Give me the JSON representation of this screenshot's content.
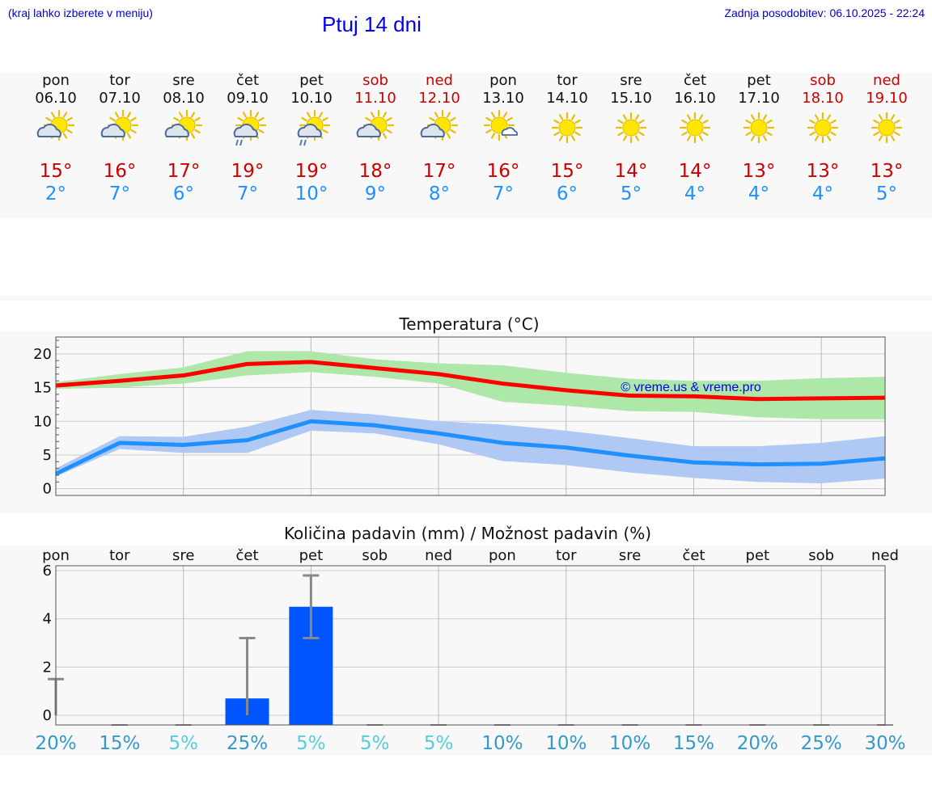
{
  "header": {
    "menu_hint": "(kraj lahko izberete v meniju)",
    "title": "Ptuj 14 dni",
    "last_update": "Zadnja posodobitev: 06.10.2025 - 22:24"
  },
  "days": [
    {
      "name": "pon",
      "date": "06.10",
      "weekend": false,
      "icon": "sun-cloud-icon",
      "tmax": "15°",
      "tmin": "2°"
    },
    {
      "name": "tor",
      "date": "07.10",
      "weekend": false,
      "icon": "sun-cloud-icon",
      "tmax": "16°",
      "tmin": "7°"
    },
    {
      "name": "sre",
      "date": "08.10",
      "weekend": false,
      "icon": "sun-cloud-icon",
      "tmax": "17°",
      "tmin": "6°"
    },
    {
      "name": "čet",
      "date": "09.10",
      "weekend": false,
      "icon": "sun-cloud-rain-icon",
      "tmax": "19°",
      "tmin": "7°"
    },
    {
      "name": "pet",
      "date": "10.10",
      "weekend": false,
      "icon": "sun-cloud-rain-icon",
      "tmax": "19°",
      "tmin": "10°"
    },
    {
      "name": "sob",
      "date": "11.10",
      "weekend": true,
      "icon": "sun-cloud-icon",
      "tmax": "18°",
      "tmin": "9°"
    },
    {
      "name": "ned",
      "date": "12.10",
      "weekend": true,
      "icon": "sun-cloud-icon",
      "tmax": "17°",
      "tmin": "8°"
    },
    {
      "name": "pon",
      "date": "13.10",
      "weekend": false,
      "icon": "sun-small-cloud-icon",
      "tmax": "16°",
      "tmin": "7°"
    },
    {
      "name": "tor",
      "date": "14.10",
      "weekend": false,
      "icon": "sun-icon",
      "tmax": "15°",
      "tmin": "6°"
    },
    {
      "name": "sre",
      "date": "15.10",
      "weekend": false,
      "icon": "sun-icon",
      "tmax": "14°",
      "tmin": "5°"
    },
    {
      "name": "čet",
      "date": "16.10",
      "weekend": false,
      "icon": "sun-icon",
      "tmax": "14°",
      "tmin": "4°"
    },
    {
      "name": "pet",
      "date": "17.10",
      "weekend": false,
      "icon": "sun-icon",
      "tmax": "13°",
      "tmin": "4°"
    },
    {
      "name": "sob",
      "date": "18.10",
      "weekend": true,
      "icon": "sun-icon",
      "tmax": "13°",
      "tmin": "4°"
    },
    {
      "name": "ned",
      "date": "19.10",
      "weekend": true,
      "icon": "sun-icon",
      "tmax": "13°",
      "tmin": "5°"
    }
  ],
  "colors": {
    "max_line": "#ff0000",
    "max_band": "#aee8a8",
    "min_line": "#1e90ff",
    "min_band": "#b0c8f4",
    "bar": "#0055ff",
    "error": "#888888",
    "pct_dark": "#3399cc",
    "pct_light": "#55ccdd",
    "watermark": "#0000ee"
  },
  "chart_data": [
    {
      "type": "line",
      "title": "Temperatura (°C)",
      "watermark": "© vreme.us & vreme.pro",
      "ylim": [
        -1,
        22.5
      ],
      "yticks": [
        0,
        5,
        10,
        15,
        20
      ],
      "x": [
        0,
        1,
        2,
        3,
        4,
        5,
        6,
        7,
        8,
        9,
        10,
        11,
        12,
        13
      ],
      "series": [
        {
          "name": "max",
          "values": [
            15.3,
            16.0,
            16.8,
            18.5,
            18.8,
            17.9,
            17.0,
            15.6,
            14.6,
            13.8,
            13.7,
            13.3,
            13.4,
            13.5
          ],
          "band_low": [
            14.8,
            15.0,
            15.6,
            16.8,
            17.3,
            16.6,
            15.6,
            12.9,
            12.3,
            11.5,
            11.4,
            10.6,
            10.3,
            10.3
          ],
          "band_high": [
            15.8,
            17.0,
            18.0,
            20.4,
            20.4,
            19.2,
            18.6,
            18.3,
            17.2,
            16.3,
            16.0,
            16.0,
            16.4,
            16.6
          ]
        },
        {
          "name": "min",
          "values": [
            2.2,
            6.8,
            6.5,
            7.2,
            10.0,
            9.4,
            8.2,
            6.8,
            6.1,
            4.9,
            3.9,
            3.6,
            3.7,
            4.5
          ],
          "band_low": [
            1.8,
            5.9,
            5.3,
            5.3,
            8.6,
            8.2,
            6.6,
            4.1,
            3.5,
            2.4,
            1.6,
            1.0,
            0.8,
            1.5
          ],
          "band_high": [
            3.0,
            7.8,
            7.7,
            9.2,
            11.7,
            11.0,
            10.0,
            9.5,
            8.6,
            7.5,
            6.3,
            6.3,
            6.8,
            7.8
          ]
        }
      ]
    },
    {
      "type": "bar",
      "title": "Količina padavin (mm) / Možnost padavin (%)",
      "categories": [
        "pon",
        "tor",
        "sre",
        "čet",
        "pet",
        "sob",
        "ned",
        "pon",
        "tor",
        "sre",
        "čet",
        "pet",
        "sob",
        "ned"
      ],
      "ylim": [
        -0.4,
        6.2
      ],
      "yticks": [
        0,
        2,
        4,
        6
      ],
      "values": [
        0,
        0,
        0,
        0.7,
        4.5,
        0,
        0,
        0,
        0,
        0,
        0,
        0,
        0,
        0
      ],
      "error_low": [
        0,
        0,
        0,
        0,
        3.2,
        0,
        0,
        0,
        0,
        0,
        0,
        0,
        0,
        0
      ],
      "error_high": [
        1.5,
        0,
        0,
        3.2,
        5.8,
        0,
        0,
        0,
        0,
        0,
        0,
        0,
        0,
        0
      ],
      "probability": [
        "20%",
        "15%",
        "5%",
        "25%",
        "5%",
        "5%",
        "5%",
        "10%",
        "10%",
        "10%",
        "15%",
        "20%",
        "25%",
        "30%"
      ]
    }
  ]
}
